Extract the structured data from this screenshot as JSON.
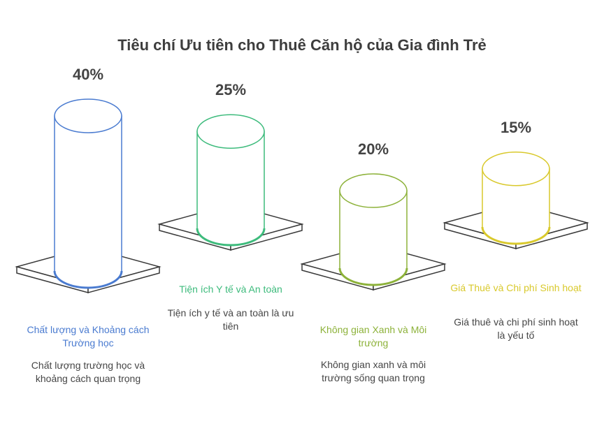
{
  "chart_data": {
    "type": "bar",
    "title": "Tiêu chí Ưu tiên cho Thuê Căn hộ của Gia đình Trẻ",
    "categories": [
      "Chất lượng và Khoảng cách Trường học",
      "Tiện ích Y tế và An toàn",
      "Không gian Xanh và Môi trường",
      "Giá Thuê và Chi phí Sinh hoạt"
    ],
    "values": [
      40,
      25,
      20,
      15
    ],
    "value_labels": [
      "40%",
      "25%",
      "20%",
      "15%"
    ],
    "descriptions": [
      "Chất lượng trường học và khoảng cách quan trọng",
      "Tiện ích y tế và an toàn là ưu tiên",
      "Không gian xanh và môi trường sống quan trọng",
      "Giá thuê và chi phí sinh hoạt là yếu tố"
    ],
    "colors": [
      "#4a7bd0",
      "#3dbb7c",
      "#8db23a",
      "#d9c92c"
    ]
  }
}
